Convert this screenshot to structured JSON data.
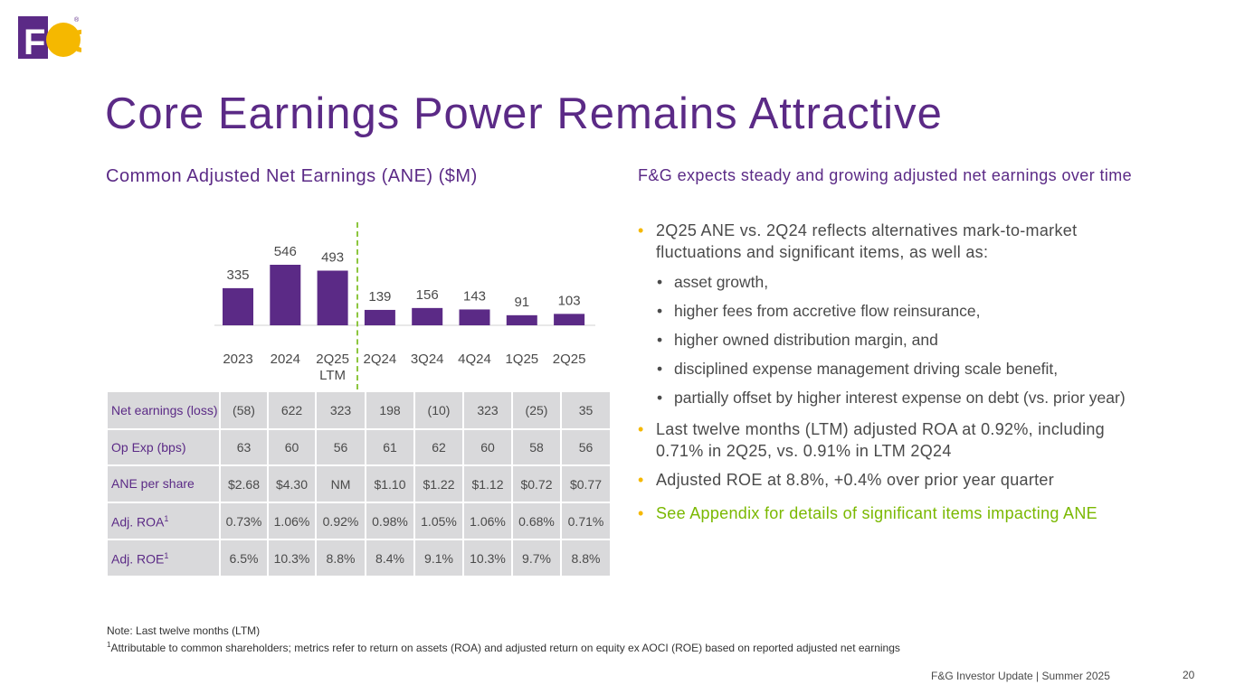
{
  "logo": {
    "text_primary": "F",
    "text_secondary": "&G",
    "mark": "®",
    "colors": {
      "purple": "#5b2a86",
      "gold": "#f5b800"
    }
  },
  "title": "Core Earnings Power Remains Attractive",
  "chart_data": {
    "type": "bar",
    "title": "Common Adjusted Net Earnings (ANE) ($M)",
    "categories": [
      "2023",
      "2024",
      "2Q25 LTM",
      "2Q24",
      "3Q24",
      "4Q24",
      "1Q25",
      "2Q25"
    ],
    "values": [
      335,
      546,
      493,
      139,
      156,
      143,
      91,
      103
    ],
    "ylim": [
      0,
      546
    ],
    "bar_color": "#5b2a86",
    "divider_color": "#8dc63f"
  },
  "table": {
    "rows": [
      {
        "label": "Net earnings (loss)",
        "values": [
          "(58)",
          "622",
          "323",
          "198",
          "(10)",
          "323",
          "(25)",
          "35"
        ]
      },
      {
        "label": "Op Exp (bps)",
        "values": [
          "63",
          "60",
          "56",
          "61",
          "62",
          "60",
          "58",
          "56"
        ]
      },
      {
        "label": "ANE per share",
        "values": [
          "$2.68",
          "$4.30",
          "NM",
          "$1.10",
          "$1.22",
          "$1.12",
          "$0.72",
          "$0.77"
        ]
      },
      {
        "label": "Adj. ROA",
        "sup": "1",
        "values": [
          "0.73%",
          "1.06%",
          "0.92%",
          "0.98%",
          "1.05%",
          "1.06%",
          "0.68%",
          "0.71%"
        ]
      },
      {
        "label": "Adj. ROE",
        "sup": "1",
        "values": [
          "6.5%",
          "10.3%",
          "8.8%",
          "8.4%",
          "9.1%",
          "10.3%",
          "9.7%",
          "8.8%"
        ]
      }
    ]
  },
  "right": {
    "heading": "F&G expects steady and growing adjusted net earnings over time",
    "bullet1": "2Q25 ANE vs. 2Q24 reflects alternatives mark-to-market fluctuations and significant items, as well as:",
    "sub": [
      "asset growth,",
      "higher fees from accretive flow reinsurance,",
      "higher owned distribution margin, and",
      "disciplined expense management driving scale benefit,",
      "partially offset by higher interest expense on debt (vs. prior year)"
    ],
    "bullet2": "Last twelve months (LTM) adjusted ROA at 0.92%, including 0.71% in 2Q25, vs. 0.91% in LTM 2Q24",
    "bullet3": "Adjusted ROE at 8.8%, +0.4% over prior year quarter",
    "bullet4": "See Appendix for details of significant items impacting ANE",
    "bullet_marker": "•",
    "sub_marker": "•"
  },
  "footnote": {
    "line1": "Note: Last twelve months (LTM)",
    "sup": "1",
    "line2": "Attributable to common shareholders; metrics refer to return on assets (ROA) and adjusted return on equity ex AOCI (ROE) based on reported adjusted net earnings"
  },
  "footer": {
    "text": "F&G Investor Update |  Summer 2025",
    "page": "20"
  }
}
